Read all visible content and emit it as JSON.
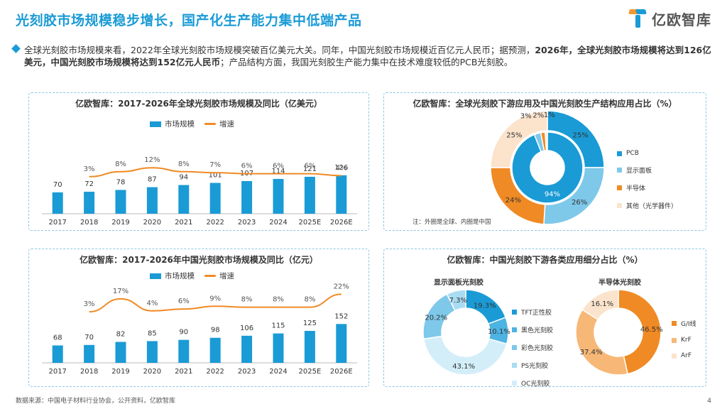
{
  "header": {
    "title": "光刻胶市场规模稳步增长，国产化生产能力集中低端产品",
    "brand": "亿欧智库"
  },
  "intro": {
    "part1": "全球光刻胶市场规模来看，2022年全球光刻胶市场规模突破百亿美元大关。同年，中国光刻胶市场规模近百亿元人民币；据预测，",
    "part2_bold": "2026年，全球光刻胶市场规模将达到126亿美元，中国光刻胶市场规模将达到152亿元人民币",
    "part3": "；产品结构方面，我国光刻胶生产能力集中在技术难度较低的PCB光刻胶。"
  },
  "chart_data": [
    {
      "type": "bar",
      "title": "亿欧智库：2017-2026年全球光刻胶市场规模及同比（亿美元）",
      "categories": [
        "2017",
        "2018",
        "2019",
        "2020",
        "2021",
        "2022",
        "2023",
        "2024",
        "2025E",
        "2026E"
      ],
      "series": [
        {
          "name": "市场规模",
          "values": [
            70,
            72,
            78,
            87,
            94,
            101,
            107,
            114,
            121,
            126
          ],
          "color": "#1a9bd6"
        },
        {
          "name": "增速",
          "type": "line",
          "values": [
            null,
            3,
            8,
            12,
            8,
            7,
            6,
            6,
            6,
            4
          ],
          "labels": [
            "",
            "3%",
            "8%",
            "12%",
            "8%",
            "7%",
            "6%",
            "6%",
            "6%",
            "4%"
          ],
          "color": "#f08a24"
        }
      ]
    },
    {
      "type": "pie",
      "title": "亿欧智库：全球光刻胶下游应用及中国光刻胶生产结构应用占比（%）",
      "categories": [
        "PCB",
        "显示面板",
        "半导体",
        "其他（光学器件）"
      ],
      "colors": [
        "#1a9bd6",
        "#7ec8ea",
        "#f08a24",
        "#fbe3cc"
      ],
      "series": [
        {
          "name": "外圈",
          "values": [
            25,
            26,
            24,
            25
          ],
          "labels": [
            "25%",
            "26%",
            "24%",
            "25%"
          ]
        },
        {
          "name": "内圈",
          "values": [
            94,
            3,
            2,
            1
          ],
          "labels": [
            "94%",
            "3%",
            "2%",
            "1%"
          ]
        }
      ],
      "note": "注：外圈是全球、内圈是中国"
    },
    {
      "type": "bar",
      "title": "亿欧智库：2017-2026年中国光刻胶市场规模及同比（亿元）",
      "categories": [
        "2017",
        "2018",
        "2019",
        "2020",
        "2021",
        "2022",
        "2023",
        "2024",
        "2025E",
        "2026E"
      ],
      "series": [
        {
          "name": "市场规模",
          "values": [
            68,
            70,
            82,
            85,
            90,
            98,
            106,
            115,
            125,
            152
          ],
          "color": "#1a9bd6"
        },
        {
          "name": "增速",
          "type": "line",
          "values": [
            null,
            3,
            17,
            4,
            6,
            9,
            8,
            8,
            8,
            22
          ],
          "labels": [
            "",
            "3%",
            "17%",
            "4%",
            "6%",
            "9%",
            "8%",
            "8%",
            "8%",
            "22%"
          ],
          "color": "#f08a24"
        }
      ]
    },
    {
      "type": "pie",
      "title": "亿欧智库：中国光刻胶下游各类应用细分占比（%）",
      "donuts": [
        {
          "name": "显示面板光刻胶",
          "categories": [
            "TFT正性胶",
            "黑色光刻胶",
            "彩色光刻胶",
            "PS光刻胶",
            "OC光刻胶"
          ],
          "values": [
            19.3,
            10.1,
            43.1,
            20.2,
            7.3
          ],
          "labels": [
            "19.3%",
            "10.1%",
            "43.1%",
            "20.2%",
            "7.3%"
          ],
          "legend_colors": [
            "#1a9bd6",
            "#4db3e2",
            "#7ec8ea",
            "#a9dcf2",
            "#d3eef9"
          ],
          "slice_colors": [
            "#1a9bd6",
            "#4db3e2",
            "#d3eef9",
            "#7ec8ea",
            "#a9dcf2"
          ]
        },
        {
          "name": "半导体光刻胶",
          "categories": [
            "G/I线",
            "KrF",
            "ArF"
          ],
          "values": [
            46.5,
            37.4,
            16.1
          ],
          "labels": [
            "46.5%",
            "37.4%",
            "16.1%"
          ],
          "colors": [
            "#f08a24",
            "#f7b877",
            "#fbe3cc"
          ]
        }
      ]
    }
  ],
  "footer": {
    "source": "数据来源：中国电子材料行业协会，公开资料，亿欧智库",
    "page": "4"
  }
}
